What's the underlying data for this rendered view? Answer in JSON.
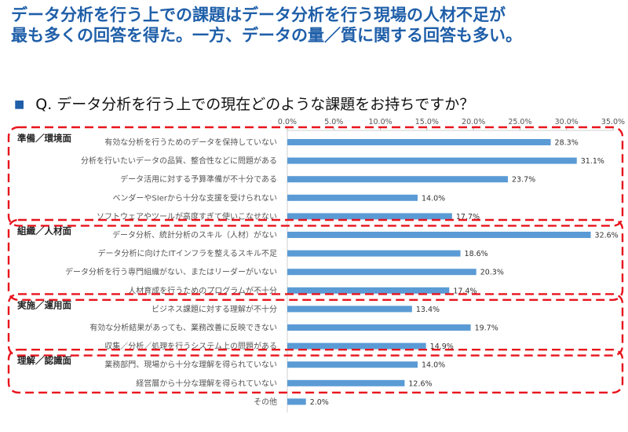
{
  "header": {
    "line1": "データ分析を行う上での課題はデータ分析を行う現場の人材不足が",
    "line2": "最も多くの回答を得た。一方、データの量／質に関する回答も多い。"
  },
  "question": {
    "bullet": "■",
    "text": "Q. データ分析を行う上での現在どのような課題をお持ちですか？"
  },
  "colors": {
    "bar": "#5b9bd5",
    "headline": "#1f5fa9",
    "group_box": "#e8141d"
  },
  "chart_data": {
    "type": "bar",
    "orientation": "horizontal",
    "xlim": [
      0,
      35
    ],
    "x_ticks": [
      "0.0%",
      "5.0%",
      "10.0%",
      "15.0%",
      "20.0%",
      "25.0%",
      "30.0%",
      "35.0%"
    ],
    "grid": false,
    "categories": [
      "有効な分析を行うためのデータを保持していない",
      "分析を行いたいデータの品質、整合性などに問題がある",
      "データ活用に対する予算準備が不十分である",
      "ベンダーやSIerから十分な支援を受けられない",
      "ソフトウェアやツールが高度すぎて使いこなせない",
      "データ分析、統計分析のスキル（人材）がない",
      "データ分析に向けたITインフラを整えるスキル不足",
      "データ分析を行う専門組織がない、またはリーダーがいない",
      "人材育成を行うためのプログラムが不十分",
      "ビジネス課題に対する理解が不十分",
      "有効な分析結果があっても、業務改善に反映できない",
      "収集／分析／処理を行うシステム上の問題がある",
      "業務部門、現場から十分な理解を得られていない",
      "経営層から十分な理解を得られていない",
      "その他"
    ],
    "values": [
      28.3,
      31.1,
      23.7,
      14.0,
      17.7,
      32.6,
      18.6,
      20.3,
      17.4,
      13.4,
      19.7,
      14.9,
      14.0,
      12.6,
      2.0
    ],
    "value_labels": [
      "28.3%",
      "31.1%",
      "23.7%",
      "14.0%",
      "17.7%",
      "32.6%",
      "18.6%",
      "20.3%",
      "17.4%",
      "13.4%",
      "19.7%",
      "14.9%",
      "14.0%",
      "12.6%",
      "2.0%"
    ],
    "groups": [
      {
        "label": "準備／環境面",
        "categories": [
          0,
          1,
          2,
          3,
          4
        ]
      },
      {
        "label": "組織／人材面",
        "categories": [
          5,
          6,
          7,
          8
        ]
      },
      {
        "label": "実施／運用面",
        "categories": [
          9,
          10,
          11
        ]
      },
      {
        "label": "理解／認識面",
        "categories": [
          12,
          13
        ]
      }
    ]
  }
}
